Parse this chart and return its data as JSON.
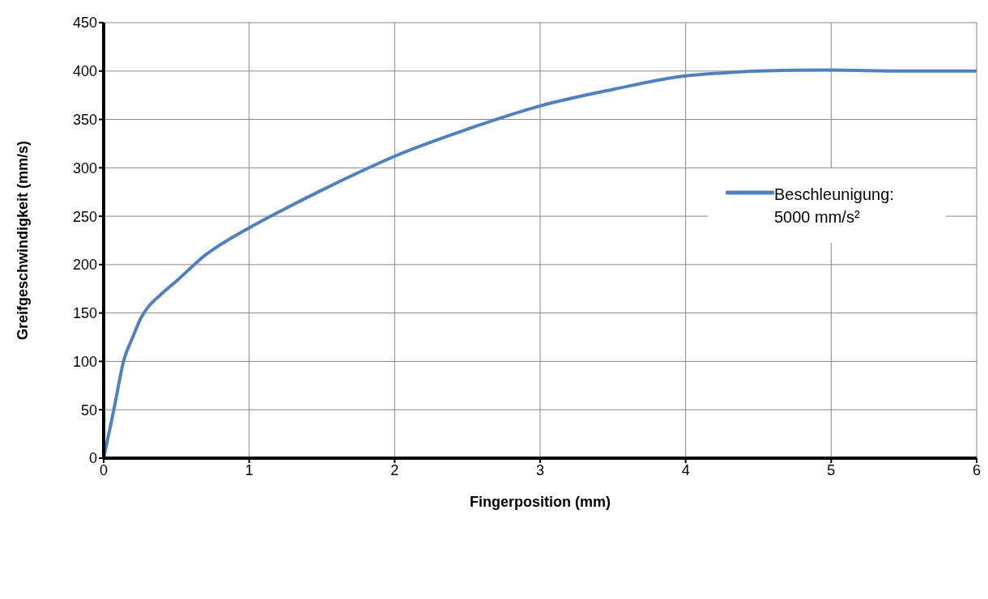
{
  "chart_data": {
    "type": "line",
    "xlabel": "Fingerposition (mm)",
    "ylabel": "Greifgeschwindigkeit (mm/s)",
    "x": [
      0,
      0.07,
      0.14,
      0.2,
      0.25,
      0.3,
      0.4,
      0.5,
      0.7,
      1,
      1.25,
      1.5,
      1.75,
      2,
      2.5,
      3,
      3.5,
      4,
      4.25,
      4.5,
      5,
      5.5,
      6
    ],
    "series": [
      {
        "name": "Beschleunigung: 5000 mm/s²",
        "color": "#4f81bd",
        "values": [
          0,
          50,
          102,
          125,
          143,
          155,
          170,
          183,
          210,
          238,
          258,
          277,
          295,
          312,
          340,
          364,
          381,
          395,
          398,
          400,
          401,
          400,
          400
        ]
      }
    ],
    "xlim": [
      0,
      6
    ],
    "xticks": [
      0,
      1,
      2,
      3,
      4,
      5,
      6
    ],
    "ylim": [
      0,
      450
    ],
    "yticks": [
      0,
      50,
      100,
      150,
      200,
      250,
      300,
      350,
      400,
      450
    ],
    "grid": true,
    "legend": "right",
    "marker": "none",
    "line_style": "solid"
  }
}
